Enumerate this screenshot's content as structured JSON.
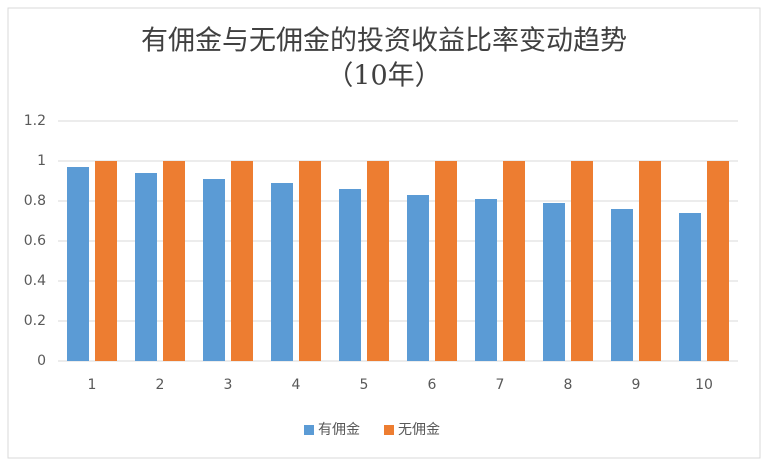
{
  "chart_data": {
    "type": "bar",
    "title": "有佣金与无佣金的投资收益比率变动趋势",
    "subtitle": "（10年）",
    "categories": [
      "1",
      "2",
      "3",
      "4",
      "5",
      "6",
      "7",
      "8",
      "9",
      "10"
    ],
    "series": [
      {
        "name": "有佣金",
        "color": "#5b9bd5",
        "values": [
          0.97,
          0.94,
          0.91,
          0.89,
          0.86,
          0.83,
          0.81,
          0.79,
          0.76,
          0.74
        ]
      },
      {
        "name": "无佣金",
        "color": "#ed7d31",
        "values": [
          1,
          1,
          1,
          1,
          1,
          1,
          1,
          1,
          1,
          1
        ]
      }
    ],
    "ylim": [
      0,
      1.2
    ],
    "yticks": [
      0,
      0.2,
      0.4,
      0.6,
      0.8,
      1,
      1.2
    ],
    "grid": true,
    "legend": "bottom"
  }
}
